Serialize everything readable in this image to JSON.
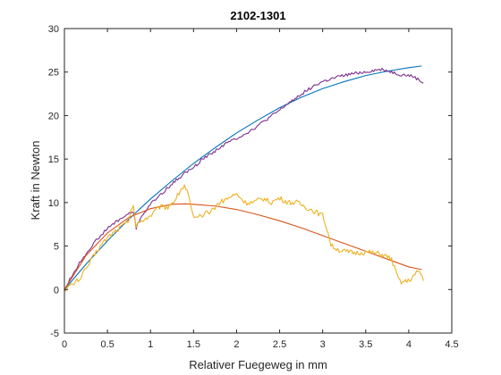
{
  "chart_data": {
    "type": "line",
    "title": "2102-1301",
    "xlabel": "Relativer Fuegeweg in mm",
    "ylabel": "Kraft in Newton",
    "xlim": [
      0,
      4.5
    ],
    "ylim": [
      -5,
      30
    ],
    "xticks": [
      0,
      0.5,
      1,
      1.5,
      2,
      2.5,
      3,
      3.5,
      4,
      4.5
    ],
    "yticks": [
      -5,
      0,
      5,
      10,
      15,
      20,
      25,
      30
    ],
    "xtick_labels": [
      "0",
      "0.5",
      "1",
      "1.5",
      "2",
      "2.5",
      "3",
      "3.5",
      "4",
      "4.5"
    ],
    "ytick_labels": [
      "-5",
      "0",
      "5",
      "10",
      "15",
      "20",
      "25",
      "30"
    ],
    "grid": false,
    "legend": "none",
    "series": [
      {
        "color": "#0072BD",
        "style": "smooth",
        "x": [
          0,
          0.25,
          0.5,
          0.75,
          1.0,
          1.25,
          1.5,
          1.75,
          2.0,
          2.25,
          2.5,
          2.75,
          3.0,
          3.25,
          3.5,
          3.75,
          4.0,
          4.15
        ],
        "y": [
          0,
          2.9,
          5.6,
          8.1,
          10.4,
          12.5,
          14.5,
          16.3,
          18.0,
          19.5,
          20.9,
          22.1,
          23.1,
          23.9,
          24.6,
          25.1,
          25.5,
          25.7
        ]
      },
      {
        "color": "#7E2F8E",
        "style": "noisy",
        "x": [
          0,
          0.1,
          0.2,
          0.3,
          0.4,
          0.5,
          0.6,
          0.7,
          0.8,
          0.82,
          0.83,
          0.85,
          0.9,
          1.0,
          1.2,
          1.4,
          1.5,
          1.6,
          1.7,
          1.8,
          1.9,
          2.0,
          2.1,
          2.2,
          2.3,
          2.4,
          2.5,
          2.6,
          2.7,
          2.8,
          2.9,
          3.0,
          3.1,
          3.2,
          3.3,
          3.4,
          3.5,
          3.6,
          3.7,
          3.8,
          3.9,
          4.0,
          4.05,
          4.1,
          4.17
        ],
        "y": [
          0,
          1.8,
          3.4,
          4.8,
          6.0,
          7.0,
          7.8,
          8.4,
          9.0,
          8.0,
          6.7,
          7.5,
          8.5,
          9.8,
          11.7,
          13.4,
          14.0,
          15.0,
          15.6,
          16.3,
          16.9,
          17.4,
          17.9,
          18.5,
          19.2,
          19.9,
          20.6,
          21.4,
          22.1,
          22.8,
          23.4,
          23.9,
          24.2,
          24.5,
          24.7,
          24.9,
          25.0,
          25.2,
          25.3,
          25.0,
          24.7,
          24.6,
          24.5,
          24.2,
          23.7
        ]
      },
      {
        "color": "#D95319",
        "style": "smooth",
        "x": [
          0,
          0.25,
          0.5,
          0.75,
          1.0,
          1.25,
          1.4,
          1.5,
          1.75,
          2.0,
          2.25,
          2.5,
          2.75,
          3.0,
          3.25,
          3.5,
          3.75,
          4.0,
          4.15
        ],
        "y": [
          0,
          3.9,
          6.5,
          8.3,
          9.3,
          9.8,
          9.85,
          9.8,
          9.6,
          9.2,
          8.6,
          7.9,
          7.1,
          6.2,
          5.3,
          4.4,
          3.5,
          2.6,
          2.3
        ]
      },
      {
        "color": "#EDB120",
        "style": "noisy",
        "x": [
          0,
          0.1,
          0.2,
          0.3,
          0.4,
          0.5,
          0.6,
          0.7,
          0.75,
          0.8,
          0.83,
          0.85,
          0.9,
          1.0,
          1.1,
          1.2,
          1.3,
          1.35,
          1.4,
          1.45,
          1.5,
          1.6,
          1.7,
          1.8,
          1.9,
          2.0,
          2.05,
          2.1,
          2.2,
          2.3,
          2.4,
          2.5,
          2.6,
          2.7,
          2.8,
          2.9,
          3.0,
          3.05,
          3.1,
          3.2,
          3.3,
          3.4,
          3.5,
          3.6,
          3.7,
          3.8,
          3.85,
          3.9,
          4.0,
          4.05,
          4.1,
          4.15,
          4.17
        ],
        "y": [
          0,
          0.6,
          1.5,
          3.2,
          4.8,
          6.0,
          6.8,
          7.5,
          8.0,
          10.0,
          7.0,
          7.5,
          8.0,
          8.5,
          9.5,
          9.5,
          10.5,
          11.5,
          12.0,
          10.5,
          8.0,
          8.5,
          9.0,
          10.0,
          10.5,
          11.0,
          10.5,
          10.0,
          10.0,
          10.5,
          10.0,
          10.5,
          10.0,
          10.0,
          9.5,
          9.0,
          8.5,
          7.0,
          5.0,
          4.5,
          4.3,
          4.2,
          4.3,
          4.2,
          4.0,
          3.5,
          2.0,
          0.8,
          1.0,
          1.5,
          2.0,
          1.8,
          1.0
        ]
      }
    ]
  }
}
